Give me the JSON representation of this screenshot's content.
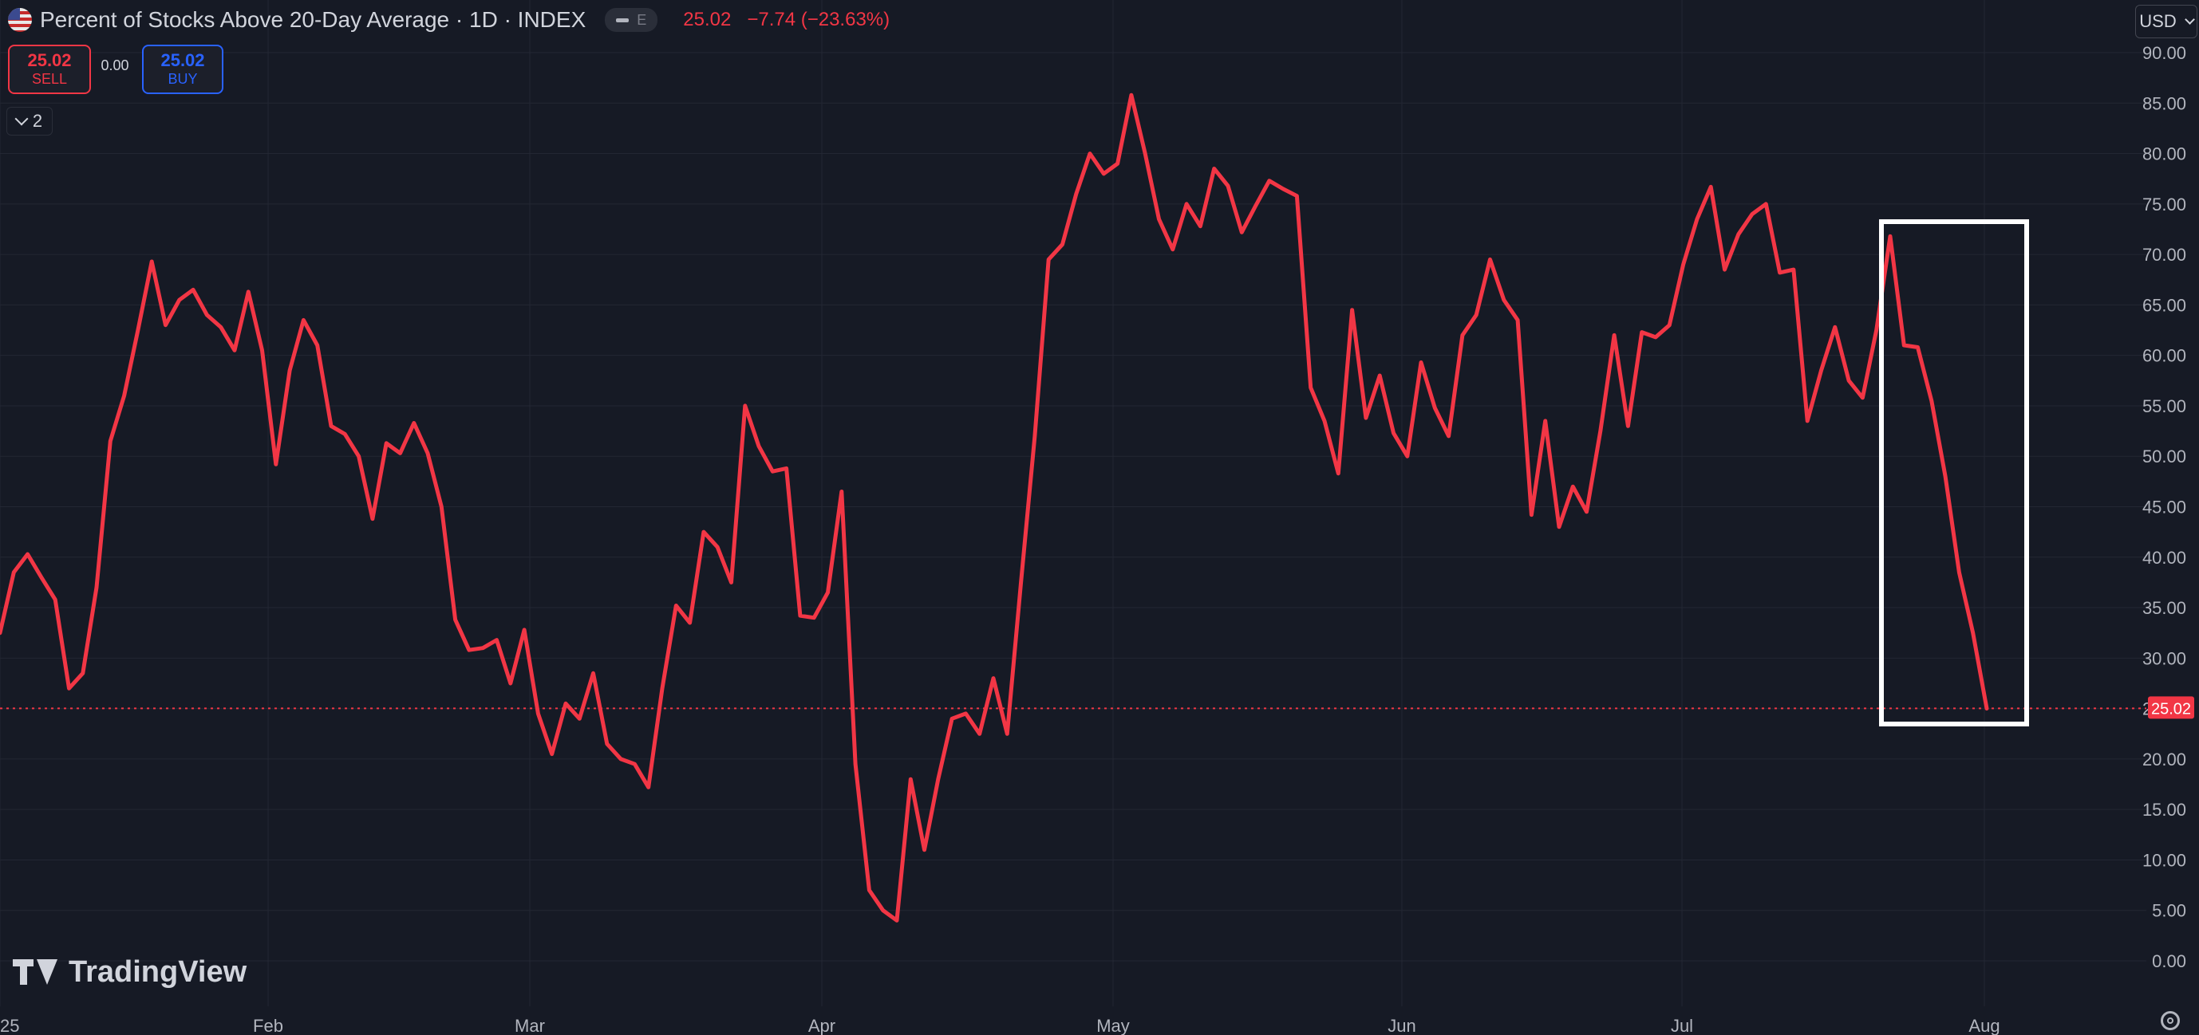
{
  "header": {
    "title": "Percent of Stocks Above 20-Day Average · 1D · INDEX",
    "icon": "us-flag-icon",
    "earnings_badge": "E",
    "last_price": "25.02",
    "change": "−7.74 (−23.63%)"
  },
  "trade": {
    "sell_price": "25.02",
    "sell_label": "SELL",
    "spread": "0.00",
    "buy_price": "25.02",
    "buy_label": "BUY"
  },
  "indicators_toggle": "2",
  "currency": "USD",
  "logo": "TradingView",
  "colors": {
    "background": "#161a25",
    "line": "#f23645",
    "grid": "#232733",
    "axis_text": "#b2b5be",
    "highlight_box": "#ffffff"
  },
  "chart_data": {
    "type": "line",
    "title": "Percent of Stocks Above 20-Day Average",
    "x_tick_labels": [
      "25",
      "Feb",
      "Mar",
      "Apr",
      "May",
      "Jun",
      "Jul",
      "Aug"
    ],
    "y_tick_labels": [
      "0.00",
      "5.00",
      "10.00",
      "15.00",
      "20.00",
      "25.00",
      "30.00",
      "35.00",
      "40.00",
      "45.00",
      "50.00",
      "55.00",
      "60.00",
      "65.00",
      "70.00",
      "75.00",
      "80.00",
      "85.00",
      "90.00"
    ],
    "ylim": [
      0,
      90
    ],
    "grid": true,
    "last_value_label": "25.02",
    "series": [
      {
        "values": [
          32.5,
          38.5,
          40.3,
          38.0,
          35.8,
          27.0,
          28.5,
          37.0,
          51.5,
          56.0,
          62.5,
          69.3,
          63.0,
          65.5,
          66.5,
          64.0,
          62.8,
          60.5,
          66.3,
          60.5,
          49.2,
          58.5,
          63.5,
          61.0,
          53.0,
          52.2,
          50.0,
          43.8,
          51.3,
          50.3,
          53.3,
          50.3,
          45.0,
          33.8,
          30.8,
          31.0,
          31.8,
          27.5,
          32.8,
          24.5,
          20.5,
          25.5,
          24.0,
          28.5,
          21.5,
          20.0,
          19.5,
          17.2,
          27.0,
          35.2,
          33.5,
          42.5,
          41.0,
          37.5,
          55.0,
          51.0,
          48.5,
          48.8,
          34.2,
          34.0,
          36.5,
          46.5,
          19.5,
          7.0,
          5.0,
          4.0,
          18.0,
          11.0,
          18.0,
          24.0,
          24.5,
          22.5,
          28.0,
          22.5,
          37.5,
          52.0,
          69.5,
          71.0,
          76.0,
          80.0,
          78.0,
          79.0,
          85.8,
          80.0,
          73.5,
          70.5,
          75.0,
          72.8,
          78.5,
          76.8,
          72.2,
          74.8,
          77.3,
          76.5,
          75.8,
          56.8,
          53.5,
          48.3,
          64.5,
          53.8,
          58.0,
          52.3,
          50.0,
          59.3,
          54.8,
          52.0,
          62.0,
          64.0,
          69.5,
          65.5,
          63.5,
          44.2,
          53.5,
          43.0,
          47.0,
          44.5,
          52.5,
          62.0,
          53.0,
          62.3,
          61.8,
          63.0,
          69.0,
          73.5,
          76.7,
          68.5,
          72.0,
          74.0,
          75.0,
          68.2,
          68.5,
          53.5,
          58.5,
          62.8,
          57.5,
          55.8,
          62.5,
          71.8,
          61.0,
          60.8,
          55.5,
          48.0,
          38.5,
          32.5,
          25.0
        ]
      }
    ],
    "annotations": [
      "highlight box around final decline"
    ]
  }
}
